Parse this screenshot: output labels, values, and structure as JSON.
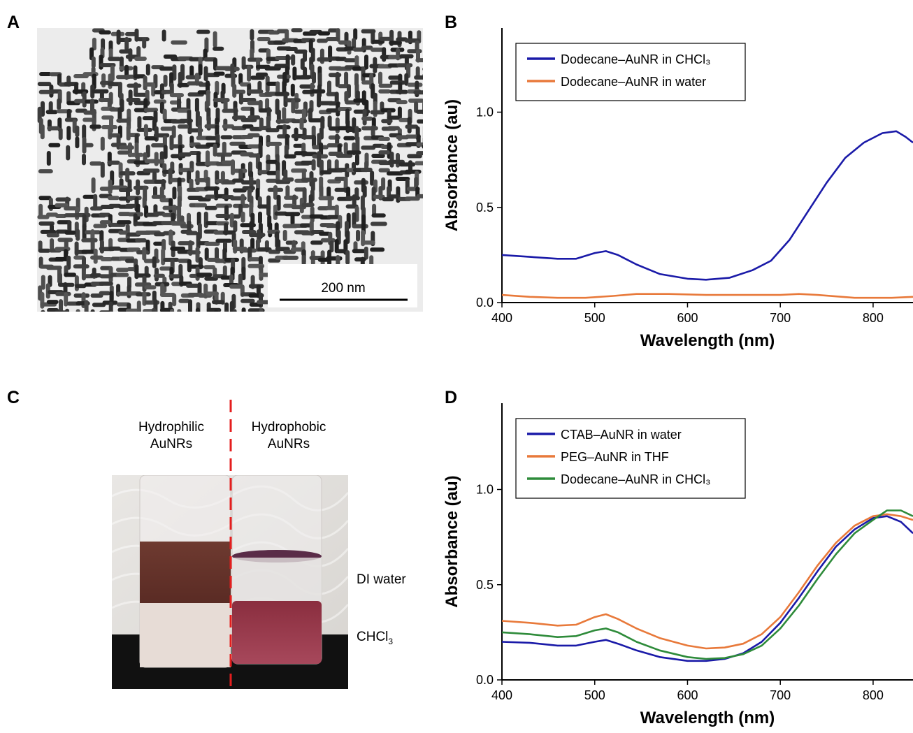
{
  "panels": {
    "a": {
      "letter": "A",
      "scalebar_label": "200 nm"
    },
    "b": {
      "letter": "B"
    },
    "c": {
      "letter": "C",
      "left_label": [
        "Hydrophilic",
        "AuNRs"
      ],
      "right_label": [
        "Hydrophobic",
        "AuNRs"
      ],
      "water_label": "DI water",
      "chcl3_label": "CHCl",
      "chcl3_sub": "3"
    },
    "d": {
      "letter": "D"
    }
  },
  "chart_data": [
    {
      "panel": "B",
      "type": "line",
      "xlabel": "Wavelength (nm)",
      "ylabel": "Absorbance (au)",
      "xlim": [
        400,
        843
      ],
      "ylim": [
        0.0,
        1.2
      ],
      "xticks": [
        400,
        500,
        600,
        700,
        800
      ],
      "yticks": [
        "0.0",
        "0.5",
        "1.0"
      ],
      "legend_position": "top-left",
      "series": [
        {
          "name": "Dodecane–AuNR in CHCl₃",
          "color": "#1a1aa8",
          "x": [
            400,
            430,
            460,
            480,
            500,
            512,
            525,
            545,
            570,
            600,
            620,
            645,
            670,
            690,
            710,
            730,
            750,
            770,
            790,
            810,
            825,
            835,
            843
          ],
          "y": [
            0.25,
            0.24,
            0.23,
            0.23,
            0.26,
            0.27,
            0.25,
            0.2,
            0.15,
            0.125,
            0.12,
            0.13,
            0.17,
            0.22,
            0.33,
            0.48,
            0.63,
            0.76,
            0.84,
            0.89,
            0.9,
            0.87,
            0.84
          ]
        },
        {
          "name": "Dodecane–AuNR in water",
          "color": "#e8793a",
          "x": [
            400,
            430,
            460,
            490,
            520,
            545,
            580,
            620,
            660,
            700,
            720,
            740,
            780,
            820,
            843
          ],
          "y": [
            0.04,
            0.03,
            0.025,
            0.025,
            0.035,
            0.045,
            0.045,
            0.04,
            0.04,
            0.04,
            0.045,
            0.04,
            0.025,
            0.025,
            0.03
          ]
        }
      ]
    },
    {
      "panel": "D",
      "type": "line",
      "xlabel": "Wavelength (nm)",
      "ylabel": "Absorbance (au)",
      "xlim": [
        400,
        843
      ],
      "ylim": [
        0.0,
        1.2
      ],
      "xticks": [
        400,
        500,
        600,
        700,
        800
      ],
      "yticks": [
        "0.0",
        "0.5",
        "1.0"
      ],
      "legend_position": "top-left",
      "series": [
        {
          "name": "CTAB–AuNR in water",
          "color": "#1a1aa8",
          "x": [
            400,
            430,
            460,
            480,
            500,
            512,
            525,
            545,
            570,
            600,
            620,
            640,
            660,
            680,
            700,
            720,
            740,
            760,
            780,
            800,
            815,
            830,
            843
          ],
          "y": [
            0.2,
            0.195,
            0.18,
            0.18,
            0.2,
            0.21,
            0.19,
            0.155,
            0.12,
            0.1,
            0.1,
            0.11,
            0.14,
            0.2,
            0.3,
            0.43,
            0.57,
            0.7,
            0.79,
            0.85,
            0.86,
            0.83,
            0.77
          ]
        },
        {
          "name": "PEG–AuNR in THF",
          "color": "#e8793a",
          "x": [
            400,
            430,
            460,
            480,
            500,
            512,
            525,
            545,
            570,
            600,
            620,
            640,
            660,
            680,
            700,
            720,
            740,
            760,
            780,
            800,
            815,
            830,
            843
          ],
          "y": [
            0.31,
            0.3,
            0.285,
            0.29,
            0.33,
            0.345,
            0.32,
            0.27,
            0.22,
            0.18,
            0.165,
            0.17,
            0.19,
            0.24,
            0.33,
            0.46,
            0.6,
            0.72,
            0.81,
            0.86,
            0.87,
            0.86,
            0.84
          ]
        },
        {
          "name": "Dodecane–AuNR in CHCl₃",
          "color": "#2e8b3a",
          "x": [
            400,
            430,
            460,
            480,
            500,
            512,
            525,
            545,
            570,
            600,
            620,
            640,
            660,
            680,
            700,
            720,
            740,
            760,
            780,
            800,
            815,
            830,
            843
          ],
          "y": [
            0.25,
            0.24,
            0.225,
            0.23,
            0.26,
            0.27,
            0.25,
            0.2,
            0.155,
            0.12,
            0.11,
            0.115,
            0.135,
            0.18,
            0.27,
            0.39,
            0.53,
            0.66,
            0.77,
            0.84,
            0.89,
            0.89,
            0.86
          ]
        }
      ]
    }
  ]
}
